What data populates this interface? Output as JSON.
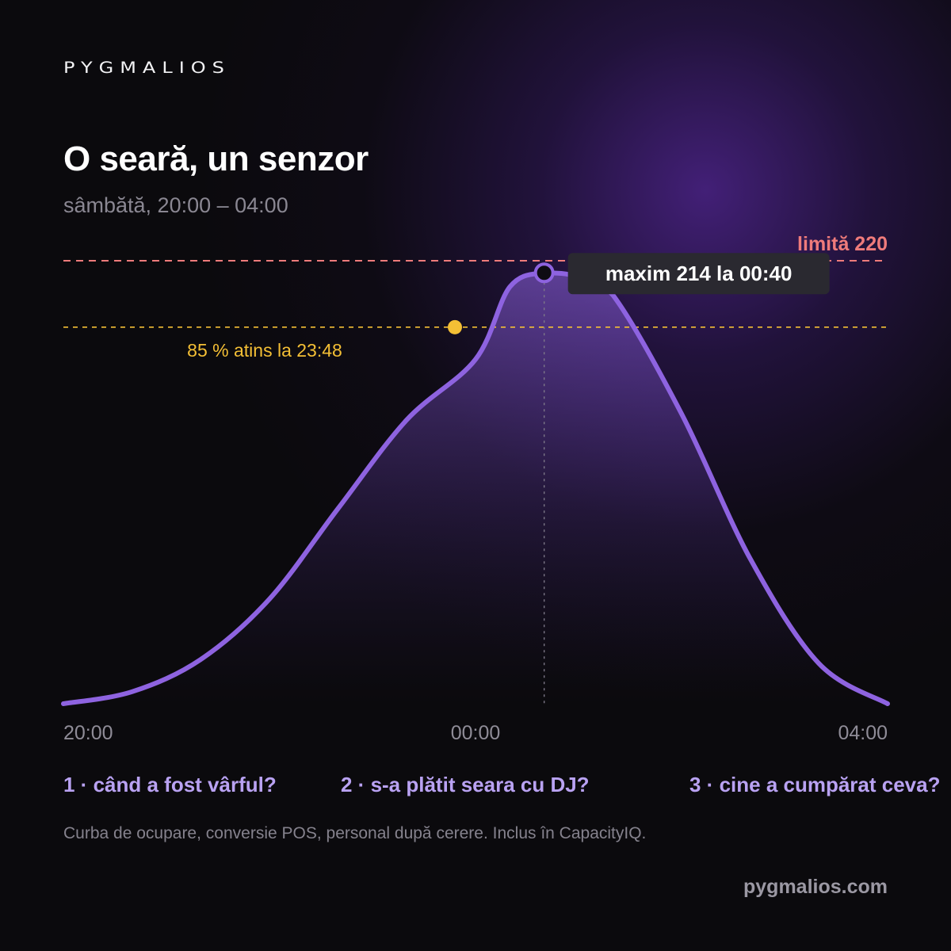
{
  "brand": {
    "logo_text": "PYGMALIOS",
    "website": "pygmalios.com"
  },
  "header": {
    "title": "O seară, un senzor",
    "subtitle": "sâmbătă, 20:00 – 04:00"
  },
  "chart_data": {
    "type": "area",
    "x": [
      "20:00",
      "20:40",
      "21:20",
      "22:00",
      "22:40",
      "23:20",
      "00:00",
      "00:20",
      "00:40",
      "01:00",
      "01:20",
      "02:00",
      "02:40",
      "03:20",
      "04:00"
    ],
    "y": [
      0,
      6,
      22,
      52,
      97,
      141,
      171,
      207,
      214,
      212,
      203,
      144,
      72,
      20,
      0
    ],
    "x_tick_labels": [
      "20:00",
      "00:00",
      "04:00"
    ],
    "ylim": [
      0,
      220
    ],
    "grid": false,
    "limit_line": {
      "value": 220,
      "label": "limită 220"
    },
    "threshold": {
      "percent": 85,
      "value": 187,
      "time": "23:48",
      "label": "85 % atins la 23:48"
    },
    "peak": {
      "value": 214,
      "time": "00:40",
      "label": "maxim 214 la 00:40"
    },
    "colors": {
      "line": "#8e63e0",
      "limit": "#ef7b7b",
      "threshold": "#f4bf35",
      "tooltip_bg": "#2a2930"
    }
  },
  "questions": [
    "1 · când a fost vârful?",
    "2 · s-a plătit seara cu DJ?",
    "3 · cine a cumpărat ceva?"
  ],
  "footnote": "Curba de ocupare, conversie POS, personal după cerere. Inclus în CapacityIQ."
}
